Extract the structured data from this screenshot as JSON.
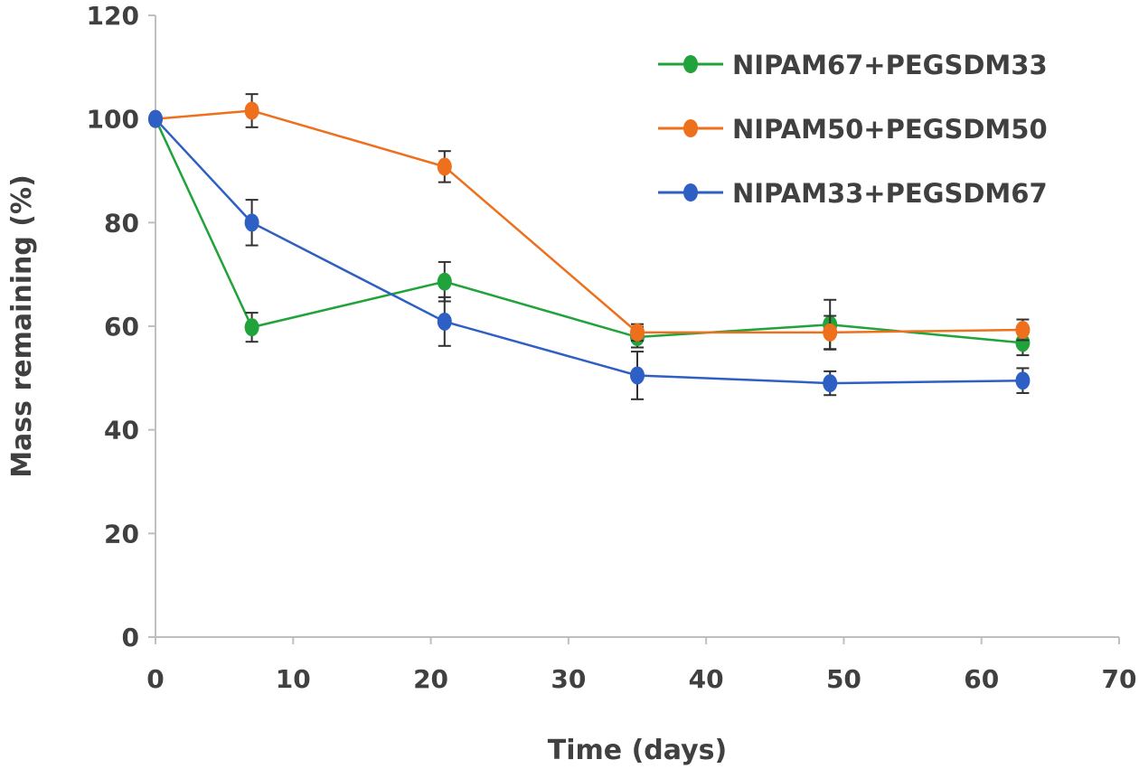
{
  "chart_data": {
    "type": "line",
    "title": "",
    "xlabel": "Time (days)",
    "ylabel": "Mass remaining (%)",
    "xlim": [
      0,
      70
    ],
    "ylim": [
      0,
      120
    ],
    "xticks": [
      0,
      10,
      20,
      30,
      40,
      50,
      60,
      70
    ],
    "yticks": [
      0,
      20,
      40,
      60,
      80,
      100,
      120
    ],
    "grid": false,
    "legend_position": "top-right",
    "x": [
      0,
      7,
      21,
      35,
      49,
      63
    ],
    "series": [
      {
        "name": "NIPAM67+PEGSDM33",
        "color": "#1fa33a",
        "values": [
          100,
          59.8,
          68.6,
          57.9,
          60.3,
          56.8
        ],
        "errors": [
          0,
          2.8,
          3.8,
          2.0,
          4.8,
          2.4
        ]
      },
      {
        "name": "NIPAM50+PEGSDM50",
        "color": "#ee6f1c",
        "values": [
          100,
          101.6,
          90.8,
          58.8,
          58.8,
          59.3
        ],
        "errors": [
          0,
          3.2,
          3.0,
          1.6,
          3.2,
          2.0
        ]
      },
      {
        "name": "NIPAM33+PEGSDM67",
        "color": "#2e5fc4",
        "values": [
          100,
          80.0,
          60.9,
          50.5,
          49.0,
          49.5
        ],
        "errors": [
          0,
          4.4,
          4.7,
          4.6,
          2.3,
          2.4
        ]
      }
    ]
  }
}
